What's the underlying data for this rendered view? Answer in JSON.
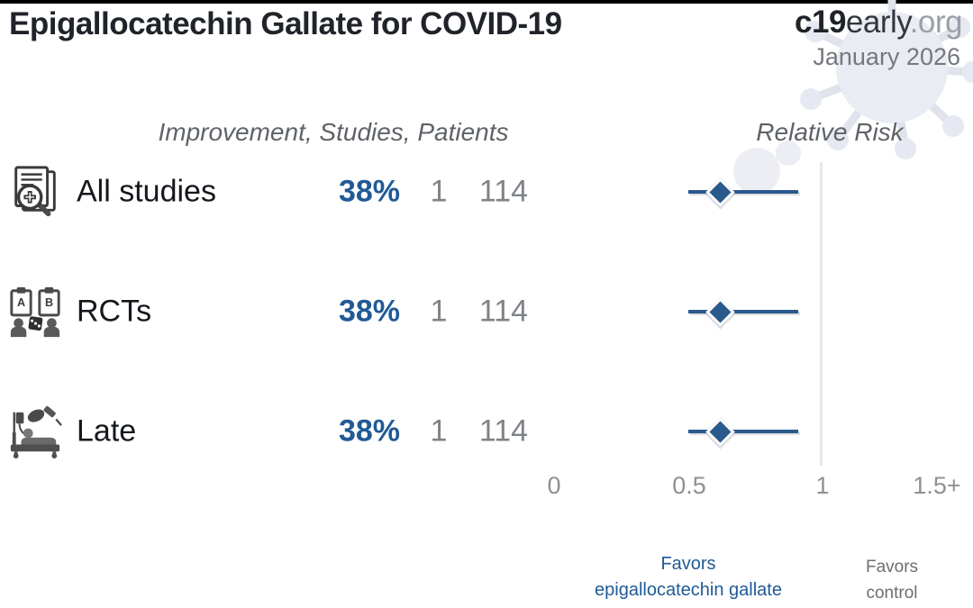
{
  "header": {
    "title": "Epigallocatechin Gallate for COVID-19",
    "logo": {
      "c19": "c19",
      "early": "early",
      "org": ".org"
    },
    "date": "January 2026"
  },
  "columns": {
    "left": "Improvement, Studies, Patients",
    "right": "Relative Risk"
  },
  "rows": [
    {
      "label": "All studies",
      "improvement": "38%",
      "studies": "1",
      "patients": "114"
    },
    {
      "label": "RCTs",
      "improvement": "38%",
      "studies": "1",
      "patients": "114"
    },
    {
      "label": "Late",
      "improvement": "38%",
      "studies": "1",
      "patients": "114"
    }
  ],
  "axis": {
    "ticks": [
      "0",
      "0.5",
      "1",
      "1.5+"
    ]
  },
  "footer": {
    "favors_left_line1": "Favors",
    "favors_left_line2": "epigallocatechin gallate",
    "favors_right_line1": "Favors",
    "favors_right_line2": "control"
  },
  "colors": {
    "accent_blue_text": "#215a96",
    "marker_blue": "#2a598c",
    "reference_line": "#e6e8f0",
    "muted_gray": "#7f8387"
  },
  "chart_data": {
    "type": "forest",
    "title": "Epigallocatechin Gallate for COVID-19",
    "xlabel": "Relative Risk",
    "xlim": [
      0,
      1.5
    ],
    "tick_values": [
      0,
      0.5,
      1,
      1.5
    ],
    "tick_labels": [
      "0",
      "0.5",
      "1",
      "1.5+"
    ],
    "reference_line_value": 1,
    "legend_left": "Favors epigallocatechin gallate",
    "legend_right": "Favors control",
    "rows": [
      {
        "label": "All studies",
        "improvement_pct": 38,
        "studies": 1,
        "patients": 114,
        "rr": 0.62,
        "ci_low": 0.5,
        "ci_high": 0.91
      },
      {
        "label": "RCTs",
        "improvement_pct": 38,
        "studies": 1,
        "patients": 114,
        "rr": 0.62,
        "ci_low": 0.5,
        "ci_high": 0.91
      },
      {
        "label": "Late",
        "improvement_pct": 38,
        "studies": 1,
        "patients": 114,
        "rr": 0.62,
        "ci_low": 0.5,
        "ci_high": 0.91
      }
    ]
  }
}
